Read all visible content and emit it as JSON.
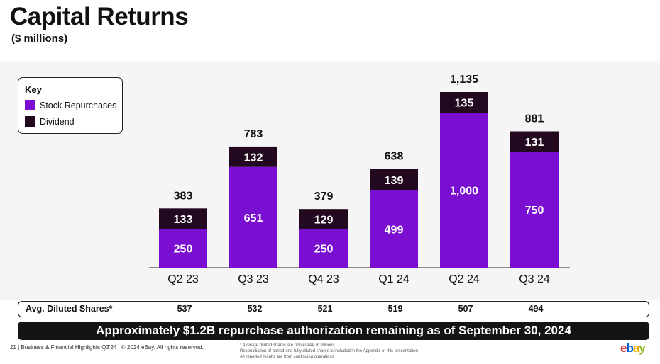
{
  "title": "Capital Returns",
  "subtitle": "($ millions)",
  "key": {
    "title": "Key",
    "items": [
      {
        "label": "Stock Repurchases",
        "color": "#7a0fd1"
      },
      {
        "label": "Dividend",
        "color": "#22091f"
      }
    ]
  },
  "chart_data": {
    "type": "bar",
    "stacked": true,
    "categories": [
      "Q2 23",
      "Q3 23",
      "Q4 23",
      "Q1 24",
      "Q2 24",
      "Q3 24"
    ],
    "series": [
      {
        "name": "Stock Repurchases",
        "values": [
          250,
          651,
          250,
          499,
          1000,
          750
        ],
        "labels": [
          "250",
          "651",
          "250",
          "499",
          "1,000",
          "750"
        ],
        "color": "#7a0fd1"
      },
      {
        "name": "Dividend",
        "values": [
          133,
          132,
          129,
          139,
          135,
          131
        ],
        "labels": [
          "133",
          "132",
          "129",
          "139",
          "135",
          "131"
        ],
        "color": "#22091f"
      }
    ],
    "totals": [
      "383",
      "783",
      "379",
      "638",
      "1,135",
      "881"
    ],
    "ylim": [
      0,
      1135
    ],
    "grid": false,
    "legend": "top-left"
  },
  "shares": {
    "label": "Avg. Diluted Shares*",
    "values": [
      "537",
      "532",
      "521",
      "519",
      "507",
      "494"
    ]
  },
  "banner": "Approximately $1.2B repurchase authorization remaining as of September 30, 2024",
  "footer": {
    "left": "21 | Business & Financial Highlights Q3'24 | © 2024 eBay. All rights reserved.",
    "notes": [
      "* Average diluted shares are non-GAAP in millions",
      "Reconciliation of period-end fully diluted shares is included in the Appendix of this presentation",
      "All reported results are from continuing operations"
    ]
  },
  "logo": {
    "letters": [
      "e",
      "b",
      "a",
      "y"
    ],
    "colors": [
      "#e53238",
      "#0064d2",
      "#f5af02",
      "#86b817"
    ]
  }
}
